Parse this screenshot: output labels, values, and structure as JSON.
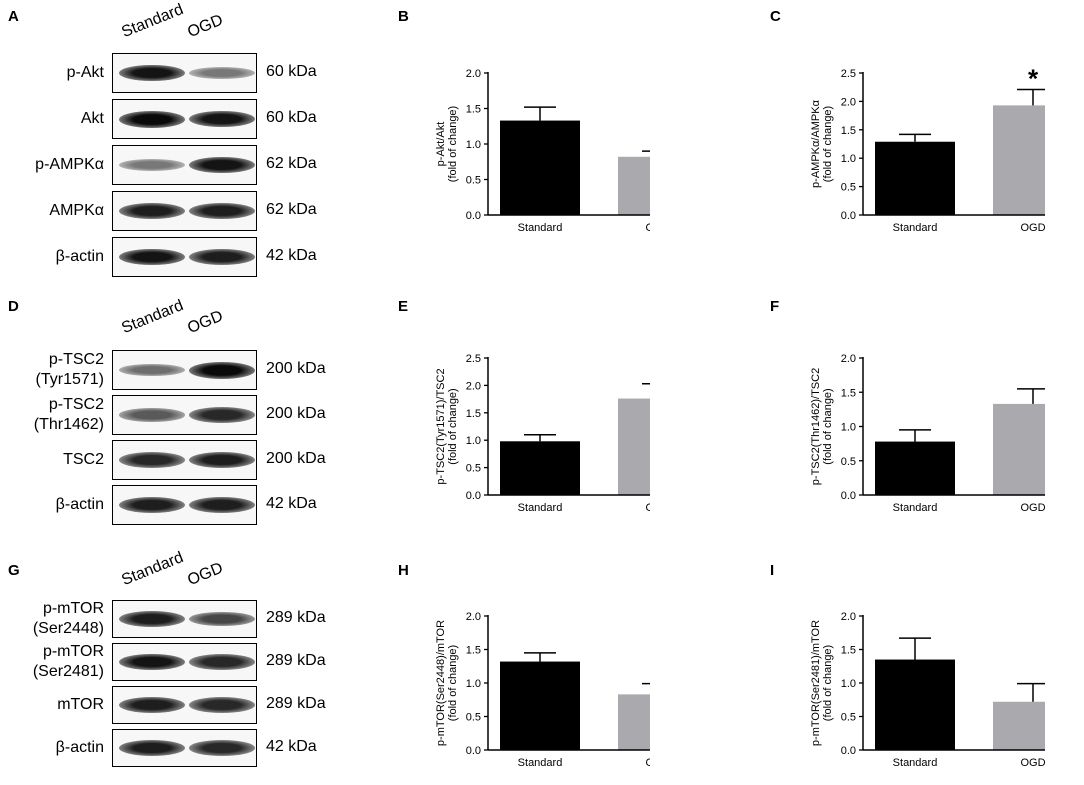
{
  "panel_letters": [
    "A",
    "B",
    "C",
    "D",
    "E",
    "F",
    "G",
    "H",
    "I"
  ],
  "blots": [
    {
      "letter": "A",
      "lanes": [
        "Standard",
        "OGD"
      ],
      "rows": [
        {
          "label": "p-Akt",
          "kda": "60 kDa",
          "intensity": [
            0.95,
            0.45
          ]
        },
        {
          "label": "Akt",
          "kda": "60 kDa",
          "intensity": [
            1.0,
            0.95
          ]
        },
        {
          "label": "p-AMPKα",
          "kda": "62 kDa",
          "intensity": [
            0.45,
            0.95
          ]
        },
        {
          "label": "AMPKα",
          "kda": "62 kDa",
          "intensity": [
            0.9,
            0.9
          ]
        },
        {
          "label": "β-actin",
          "kda": "42 kDa",
          "intensity": [
            0.95,
            0.9
          ]
        }
      ]
    },
    {
      "letter": "D",
      "lanes": [
        "Standard",
        "OGD"
      ],
      "rows": [
        {
          "label": "p-TSC2\n(Tyr1571)",
          "kda": "200 kDa",
          "intensity": [
            0.5,
            1.0
          ]
        },
        {
          "label": "p-TSC2\n(Thr1462)",
          "kda": "200 kDa",
          "intensity": [
            0.6,
            0.85
          ]
        },
        {
          "label": "TSC2",
          "kda": "200 kDa",
          "intensity": [
            0.85,
            0.9
          ]
        },
        {
          "label": "β-actin",
          "kda": "42 kDa",
          "intensity": [
            0.9,
            0.9
          ]
        }
      ]
    },
    {
      "letter": "G",
      "lanes": [
        "Standard",
        "OGD"
      ],
      "rows": [
        {
          "label": "p-mTOR\n(Ser2448)",
          "kda": "289 kDa",
          "intensity": [
            0.9,
            0.7
          ]
        },
        {
          "label": "p-mTOR\n(Ser2481)",
          "kda": "289 kDa",
          "intensity": [
            0.95,
            0.85
          ]
        },
        {
          "label": "mTOR",
          "kda": "289 kDa",
          "intensity": [
            0.9,
            0.85
          ]
        },
        {
          "label": "β-actin",
          "kda": "42 kDa",
          "intensity": [
            0.9,
            0.85
          ]
        }
      ]
    }
  ],
  "chart_data": [
    {
      "letter": "B",
      "type": "bar",
      "categories": [
        "Standard",
        "OGD"
      ],
      "values": [
        1.33,
        0.82
      ],
      "errors": [
        0.19,
        0.08
      ],
      "ylabel": "p-Akt/Akt\n(fold of change)",
      "ylim": [
        0,
        2.0
      ],
      "yticks": [
        "0.0",
        "0.5",
        "1.0",
        "1.5",
        "2.0"
      ],
      "significance": [
        "",
        "*"
      ],
      "colors": [
        "#000000",
        "#a9a9ae"
      ]
    },
    {
      "letter": "C",
      "type": "bar",
      "categories": [
        "Standard",
        "OGD"
      ],
      "values": [
        1.29,
        1.93
      ],
      "errors": [
        0.13,
        0.28
      ],
      "ylabel": "p-AMPKα/AMPKα\n(fold of change)",
      "ylim": [
        0,
        2.5
      ],
      "yticks": [
        "0.0",
        "0.5",
        "1.0",
        "1.5",
        "2.0",
        "2.5"
      ],
      "significance": [
        "",
        "*"
      ],
      "colors": [
        "#000000",
        "#a9a9ae"
      ]
    },
    {
      "letter": "E",
      "type": "bar",
      "categories": [
        "Standard",
        "OGD"
      ],
      "values": [
        0.98,
        1.76
      ],
      "errors": [
        0.12,
        0.27
      ],
      "ylabel": "p-TSC2(Tyr1571)/TSC2\n(fold of change)",
      "ylim": [
        0,
        2.5
      ],
      "yticks": [
        "0.0",
        "0.5",
        "1.0",
        "1.5",
        "2.0",
        "2.5"
      ],
      "significance": [
        "",
        "*"
      ],
      "colors": [
        "#000000",
        "#a9a9ae"
      ]
    },
    {
      "letter": "F",
      "type": "bar",
      "categories": [
        "Standard",
        "OGD"
      ],
      "values": [
        0.78,
        1.33
      ],
      "errors": [
        0.17,
        0.22
      ],
      "ylabel": "p-TSC2(Thr1462)/TSC2\n(fold of change)",
      "ylim": [
        0,
        2.0
      ],
      "yticks": [
        "0.0",
        "0.5",
        "1.0",
        "1.5",
        "2.0"
      ],
      "significance": [
        "",
        ""
      ],
      "colors": [
        "#000000",
        "#a9a9ae"
      ]
    },
    {
      "letter": "H",
      "type": "bar",
      "categories": [
        "Standard",
        "OGD"
      ],
      "values": [
        1.32,
        0.83
      ],
      "errors": [
        0.13,
        0.16
      ],
      "ylabel": "p-mTOR(Ser2448)/mTOR\n(fold of change)",
      "ylim": [
        0,
        2.0
      ],
      "yticks": [
        "0.0",
        "0.5",
        "1.0",
        "1.5",
        "2.0"
      ],
      "significance": [
        "",
        "*"
      ],
      "colors": [
        "#000000",
        "#a9a9ae"
      ]
    },
    {
      "letter": "I",
      "type": "bar",
      "categories": [
        "Standard",
        "OGD"
      ],
      "values": [
        1.35,
        0.72
      ],
      "errors": [
        0.32,
        0.27
      ],
      "ylabel": "p-mTOR(Ser2481)/mTOR\n(fold of change)",
      "ylim": [
        0,
        2.0
      ],
      "yticks": [
        "0.0",
        "0.5",
        "1.0",
        "1.5",
        "2.0"
      ],
      "significance": [
        "",
        ""
      ],
      "colors": [
        "#000000",
        "#a9a9ae"
      ]
    }
  ]
}
